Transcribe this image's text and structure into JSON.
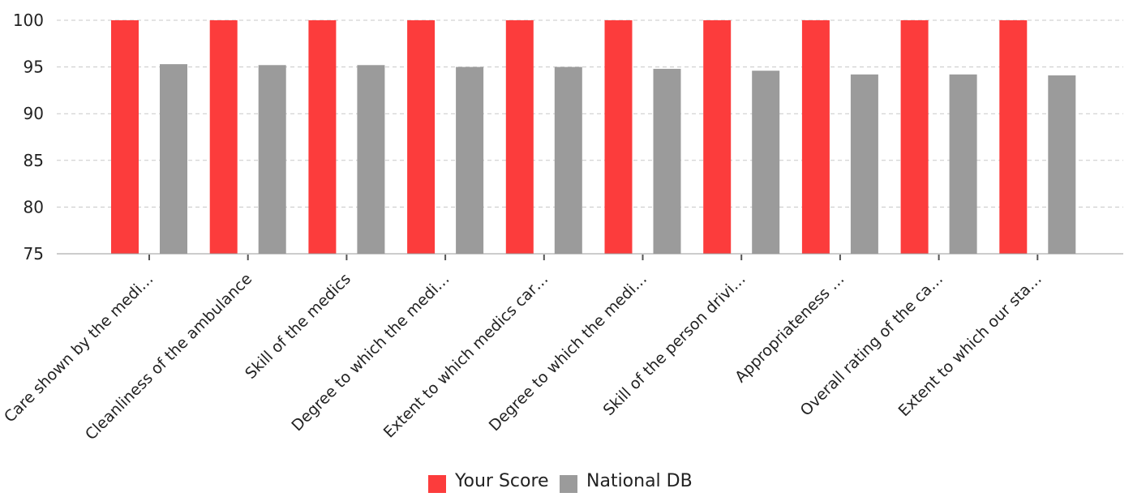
{
  "chart_data": {
    "type": "bar",
    "title": "",
    "xlabel": "",
    "ylabel": "",
    "ylim": [
      75,
      100
    ],
    "yticks": [
      75,
      80,
      85,
      90,
      95,
      100
    ],
    "grid": true,
    "legend_position": "bottom-center",
    "categories": [
      "Care shown by the medi…",
      "Cleanliness of the ambulance",
      "Skill of the medics",
      "Degree to which the medi…",
      "Extent to which medics car…",
      "Degree to which the medi…",
      "Skill of the person drivi…",
      "Appropriateness …",
      "Overall rating of the ca…",
      "Extent to which our sta…"
    ],
    "series": [
      {
        "name": "Your Score",
        "color": "#fc3c3c",
        "values": [
          100,
          100,
          100,
          100,
          100,
          100,
          100,
          100,
          100,
          100
        ]
      },
      {
        "name": "National DB",
        "color": "#9b9b9b",
        "values": [
          95.3,
          95.2,
          95.2,
          95.0,
          95.0,
          94.8,
          94.6,
          94.2,
          94.2,
          94.1
        ]
      }
    ]
  }
}
